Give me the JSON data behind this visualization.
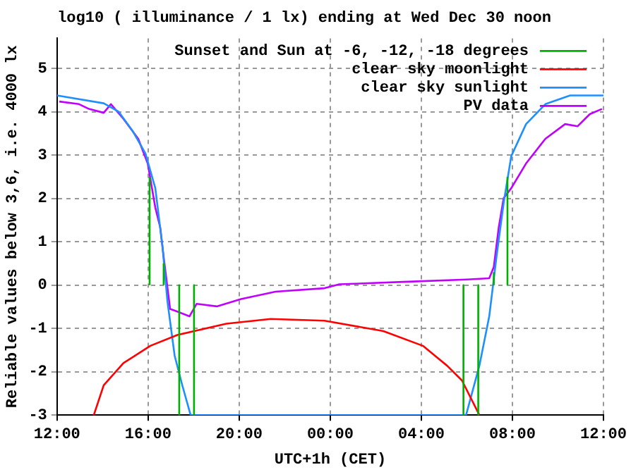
{
  "chart_data": {
    "type": "line",
    "title": "log10 ( illuminance / 1 lx) ending at Wed Dec 30 noon",
    "xlabel": "UTC+1h (CET)",
    "ylabel": "Reliable values below 3,6, i.e. 4000 lx",
    "xlim": [
      "--12-29T12:00",
      "--12-30T12:00"
    ],
    "xticks": [
      {
        "value": "--12-29T12:00",
        "label": "12:00"
      },
      {
        "value": "--12-29T16:00",
        "label": "16:00"
      },
      {
        "value": "--12-29T20:00",
        "label": "20:00"
      },
      {
        "value": "--12-30T00:00",
        "label": "00:00"
      },
      {
        "value": "--12-30T04:00",
        "label": "04:00"
      },
      {
        "value": "--12-30T08:00",
        "label": "08:00"
      },
      {
        "value": "--12-30T12:00",
        "label": "12:00"
      }
    ],
    "ylim": [
      -3,
      5.7
    ],
    "yticks": [
      -3,
      -2,
      -1,
      0,
      1,
      2,
      3,
      4,
      5
    ],
    "grid": true,
    "legend": "top right",
    "marker": "none",
    "line_style": "solid",
    "series": [
      {
        "name": "Sunset and Sun at -6, -12, -18 degrees",
        "color": "#00b000",
        "x": [
          "--12-29T16:04",
          "--12-29T16:04"
        ],
        "values": [
          0,
          2.5
        ]
      },
      {
        "color": "#00b000",
        "x": [
          "--12-29T16:41",
          "--12-29T16:41"
        ],
        "values": [
          0,
          0.5
        ]
      },
      {
        "color": "#00b000",
        "x": [
          "--12-29T17:22",
          "--12-29T17:22"
        ],
        "values": [
          0,
          -3
        ]
      },
      {
        "color": "#00b000",
        "x": [
          "--12-29T18:01",
          "--12-29T18:01"
        ],
        "values": [
          0,
          -3
        ]
      },
      {
        "color": "#00b000",
        "x": [
          "--12-30T05:51",
          "--12-30T05:51"
        ],
        "values": [
          0,
          -3
        ]
      },
      {
        "color": "#00b000",
        "x": [
          "--12-30T06:30",
          "--12-30T06:30"
        ],
        "values": [
          0,
          -3
        ]
      },
      {
        "color": "#00b000",
        "x": [
          "--12-30T07:11",
          "--12-30T07:11"
        ],
        "values": [
          0,
          0.3
        ]
      },
      {
        "color": "#00b000",
        "x": [
          "--12-30T07:47",
          "--12-30T07:47"
        ],
        "values": [
          0,
          2.5
        ]
      },
      {
        "name": "clear sky moonlight",
        "color": "#ff0000",
        "x": [
          "--12-29T13:37",
          "--12-29T14:03",
          "--12-29T14:55",
          "--12-29T16:06",
          "--12-29T17:17",
          "--12-29T19:26",
          "--12-29T21:23",
          "--12-29T23:45",
          "--12-30T02:20",
          "--12-30T04:04",
          "--12-30T05:08",
          "--12-30T05:47",
          "--12-30T06:33"
        ],
        "values": [
          -3,
          -2.31,
          -1.8,
          -1.4,
          -1.15,
          -0.89,
          -0.78,
          -0.82,
          -1.06,
          -1.4,
          -1.86,
          -2.2,
          -3
        ]
      },
      {
        "name": "clear sky sunlight",
        "color": "#1e8fff",
        "x": [
          "--12-29T12:00",
          "--12-29T14:03",
          "--12-29T14:42",
          "--12-29T15:20",
          "--12-29T15:53",
          "--12-29T16:19",
          "--12-29T16:38",
          "--12-29T16:51",
          "--12-29T17:10",
          "--12-29T17:30",
          "--12-29T17:52",
          "--12-30T05:58",
          "--12-30T06:33",
          "--12-30T06:59",
          "--12-30T07:18",
          "--12-30T07:37",
          "--12-30T07:57",
          "--12-30T08:36",
          "--12-30T09:27",
          "--12-30T10:32",
          "--12-30T12:00"
        ],
        "values": [
          4.38,
          4.2,
          4.01,
          3.55,
          3.04,
          2.24,
          0.88,
          -0.38,
          -1.63,
          -2.31,
          -3,
          -3,
          -1.86,
          -0.72,
          0.65,
          1.9,
          2.98,
          3.72,
          4.18,
          4.38,
          4.38
        ]
      },
      {
        "name": "PV data",
        "color": "#c000ff",
        "x": [
          "--12-29T12:06",
          "--12-29T12:58",
          "--12-29T13:24",
          "--12-29T14:03",
          "--12-29T14:22",
          "--12-29T14:55",
          "--12-29T15:34",
          "--12-29T15:59",
          "--12-29T16:19",
          "--12-29T16:32",
          "--12-29T16:41",
          "--12-29T16:58",
          "--12-29T17:17",
          "--12-29T17:49",
          "--12-29T18:08",
          "--12-29T19:01",
          "--12-29T20:05",
          "--12-29T21:36",
          "--12-29T23:45",
          "--12-30T00:24",
          "--12-30T03:25",
          "--12-30T06:00",
          "--12-30T06:59",
          "--12-30T07:11",
          "--12-30T07:24",
          "--12-30T07:37",
          "--12-30T07:57",
          "--12-30T08:36",
          "--12-30T09:27",
          "--12-30T10:19",
          "--12-30T10:52",
          "--12-30T11:24",
          "--12-30T11:56"
        ],
        "values": [
          4.24,
          4.18,
          4.07,
          3.98,
          4.18,
          3.84,
          3.38,
          2.81,
          1.79,
          1.33,
          0.65,
          -0.55,
          -0.61,
          -0.72,
          -0.43,
          -0.49,
          -0.32,
          -0.15,
          -0.07,
          0.02,
          0.08,
          0.13,
          0.16,
          0.42,
          1.33,
          2.01,
          2.24,
          2.81,
          3.38,
          3.72,
          3.67,
          3.95,
          4.07
        ]
      }
    ]
  }
}
